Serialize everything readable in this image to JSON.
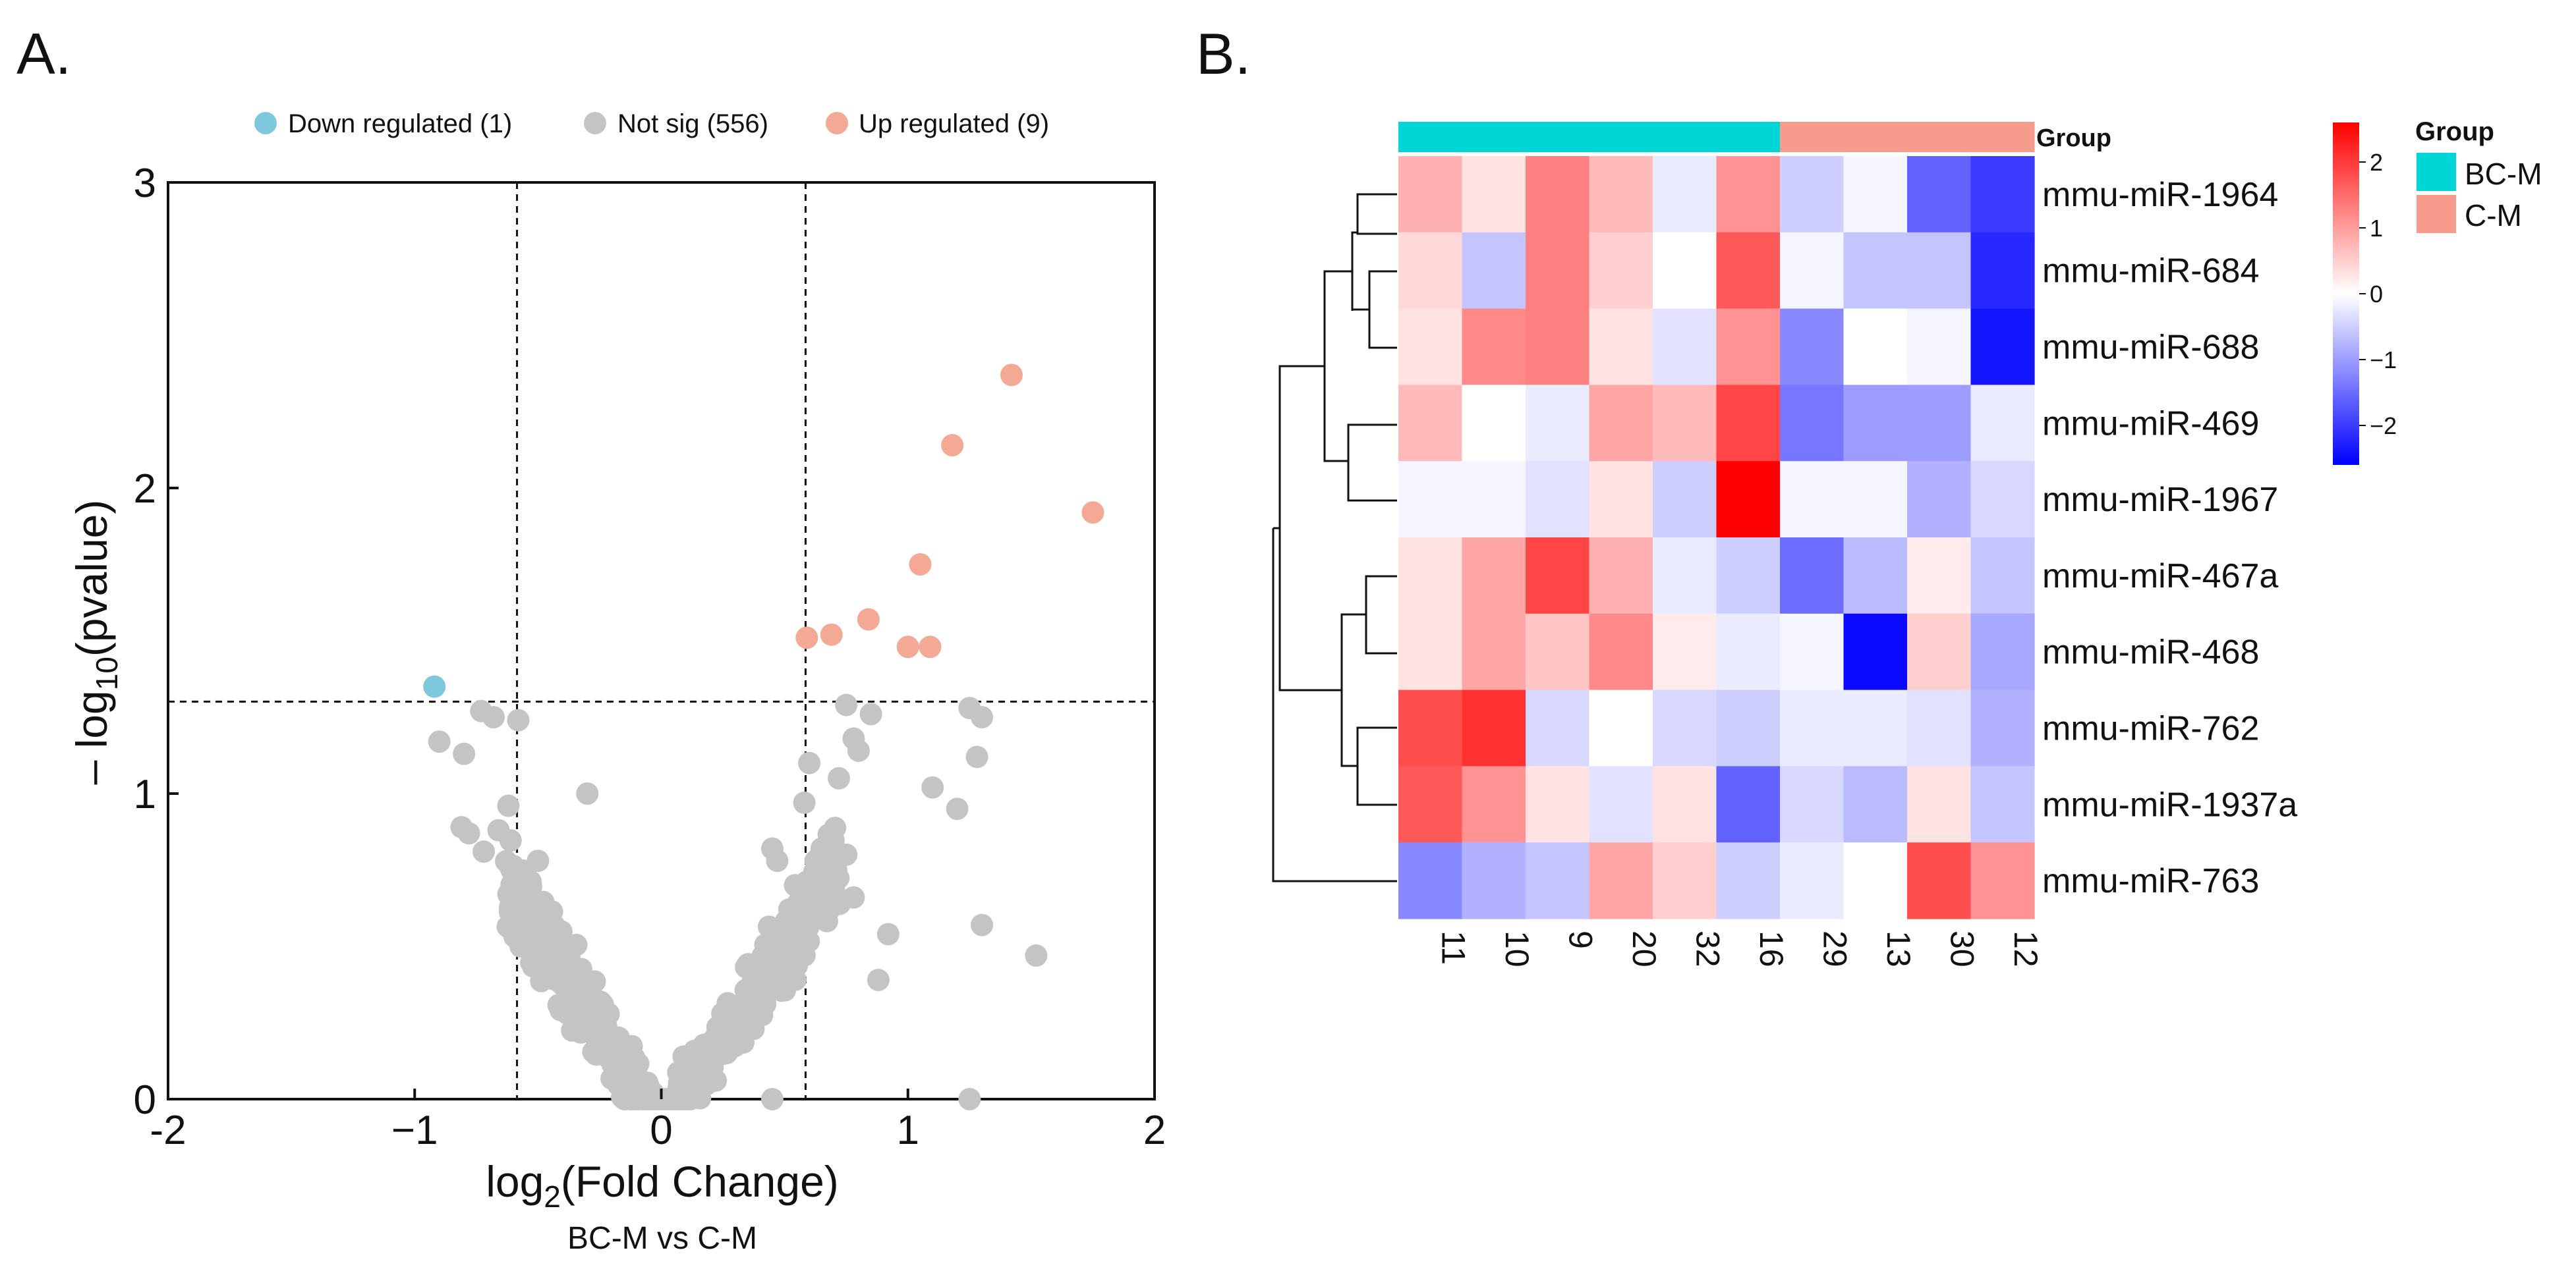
{
  "panels": {
    "a_label": "A.",
    "b_label": "B."
  },
  "colors": {
    "down": "#7ec8dd",
    "notsig": "#c4c4c4",
    "up": "#f4a994",
    "bcm": "#00d6d6",
    "cm": "#f79b8c",
    "heat_low": "#0000ff",
    "heat_mid": "#ffffff",
    "heat_high": "#ff0000"
  },
  "volcano": {
    "legend": {
      "down": "Down regulated (1)",
      "notsig": "Not sig (556)",
      "up": "Up regulated (9)"
    },
    "xlabel_main": "log",
    "xlabel_sub": "2",
    "xlabel_rest": "(Fold Change)",
    "ylabel_main": "– log",
    "ylabel_sub": "10",
    "ylabel_rest": "(pvalue)",
    "subtitle": "BC-M vs C-M",
    "xticks": [
      -2,
      -1,
      0,
      1,
      2
    ],
    "xtick_labels": [
      "-2",
      "−1",
      "0",
      "1",
      "2"
    ],
    "yticks": [
      0,
      1,
      2,
      3
    ],
    "yticks_labels": [
      "0",
      "1",
      "2",
      "3"
    ],
    "xlim": [
      -2,
      2
    ],
    "ylim": [
      0,
      3
    ],
    "vlines": [
      -0.585,
      0.585
    ],
    "hline": 1.301
  },
  "chart_data": [
    {
      "type": "scatter",
      "title": "",
      "xlabel": "log2(Fold Change)",
      "ylabel": "– log10(pvalue)",
      "subtitle": "BC-M vs C-M",
      "xlim": [
        -2,
        2
      ],
      "ylim": [
        0,
        3
      ],
      "series": [
        {
          "name": "Down regulated (1)",
          "color": "#7ec8dd",
          "points": [
            [
              -0.92,
              1.35
            ]
          ]
        },
        {
          "name": "Up regulated (9)",
          "color": "#f4a994",
          "points": [
            [
              1.42,
              2.37
            ],
            [
              1.18,
              2.14
            ],
            [
              1.75,
              1.92
            ],
            [
              1.05,
              1.75
            ],
            [
              0.84,
              1.57
            ],
            [
              0.69,
              1.52
            ],
            [
              0.59,
              1.51
            ],
            [
              1.0,
              1.48
            ],
            [
              1.09,
              1.48
            ]
          ]
        },
        {
          "name": "Not sig (556)",
          "color": "#c4c4c4",
          "points": [
            [
              -0.68,
              1.25
            ],
            [
              -0.58,
              1.24
            ],
            [
              -0.73,
              1.27
            ],
            [
              -0.8,
              1.13
            ],
            [
              -0.62,
              0.96
            ],
            [
              -0.66,
              0.88
            ],
            [
              -0.78,
              0.87
            ],
            [
              -0.81,
              0.89
            ],
            [
              -0.6,
              0.7
            ],
            [
              -0.55,
              0.64
            ],
            [
              -0.72,
              0.81
            ],
            [
              -0.9,
              1.17
            ],
            [
              -0.3,
              1.0
            ],
            [
              0.6,
              1.1
            ],
            [
              0.75,
              1.29
            ],
            [
              0.72,
              1.05
            ],
            [
              0.78,
              1.18
            ],
            [
              0.65,
              0.82
            ],
            [
              0.58,
              0.97
            ],
            [
              0.8,
              1.14
            ],
            [
              0.85,
              1.26
            ],
            [
              1.25,
              1.28
            ],
            [
              1.3,
              1.25
            ],
            [
              1.28,
              1.12
            ],
            [
              1.2,
              0.95
            ],
            [
              1.1,
              1.02
            ],
            [
              1.3,
              0.57
            ],
            [
              1.52,
              0.47
            ],
            [
              0.92,
              0.54
            ],
            [
              0.88,
              0.39
            ],
            [
              0.78,
              0.66
            ],
            [
              0.7,
              0.74
            ],
            [
              0.7,
              0.82
            ],
            [
              0.75,
              0.8
            ],
            [
              0.45,
              0.82
            ],
            [
              0.47,
              0.78
            ],
            [
              0.45,
              0.0
            ],
            [
              1.25,
              0.0
            ],
            [
              -0.5,
              0.78
            ]
          ]
        }
      ],
      "notsig_cloud_count": 517
    },
    {
      "type": "heatmap",
      "title": "",
      "rows": [
        "mmu-miR-1964",
        "mmu-miR-684",
        "mmu-miR-688",
        "mmu-miR-469",
        "mmu-miR-1967",
        "mmu-miR-467a",
        "mmu-miR-468",
        "mmu-miR-762",
        "mmu-miR-1937a",
        "mmu-miR-763"
      ],
      "columns": [
        "11",
        "10",
        "9",
        "20",
        "32",
        "16",
        "29",
        "13",
        "30",
        "12"
      ],
      "groups": [
        "BC-M",
        "BC-M",
        "BC-M",
        "BC-M",
        "BC-M",
        "BC-M",
        "C-M",
        "C-M",
        "C-M",
        "C-M"
      ],
      "group_bar_label": "Group",
      "values": [
        [
          0.8,
          0.3,
          1.3,
          0.7,
          -0.2,
          1.1,
          -0.5,
          -0.1,
          -1.6,
          -2.0
        ],
        [
          0.4,
          -0.6,
          1.3,
          0.5,
          0.0,
          1.7,
          -0.1,
          -0.6,
          -0.6,
          -2.2
        ],
        [
          0.3,
          1.2,
          1.3,
          0.3,
          -0.3,
          1.1,
          -1.2,
          0.0,
          -0.1,
          -2.4
        ],
        [
          0.7,
          0.0,
          -0.2,
          0.9,
          0.7,
          1.9,
          -1.4,
          -1.0,
          -1.0,
          -0.2
        ],
        [
          -0.1,
          -0.1,
          -0.3,
          0.3,
          -0.5,
          2.6,
          -0.1,
          -0.1,
          -0.8,
          -0.4
        ],
        [
          0.3,
          0.9,
          1.9,
          0.8,
          -0.2,
          -0.5,
          -1.5,
          -0.7,
          0.2,
          -0.6
        ],
        [
          0.3,
          0.9,
          0.6,
          1.2,
          0.2,
          -0.2,
          -0.1,
          -2.5,
          0.5,
          -0.9
        ],
        [
          1.8,
          2.1,
          -0.4,
          0.0,
          -0.4,
          -0.5,
          -0.2,
          -0.2,
          -0.3,
          -0.8
        ],
        [
          1.7,
          1.1,
          0.3,
          -0.3,
          0.3,
          -1.6,
          -0.4,
          -0.7,
          0.3,
          -0.6
        ],
        [
          -1.2,
          -0.8,
          -0.6,
          0.9,
          0.5,
          -0.5,
          -0.2,
          0.0,
          1.8,
          1.1
        ]
      ],
      "colorbar": {
        "ticks": [
          2,
          1,
          0,
          -1,
          -2
        ],
        "labels": [
          "2",
          "1",
          "0",
          "−1",
          "−2"
        ],
        "range": [
          -2.6,
          2.6
        ]
      },
      "group_legend": {
        "title": "Group",
        "items": [
          "BC-M",
          "C-M"
        ]
      }
    }
  ]
}
